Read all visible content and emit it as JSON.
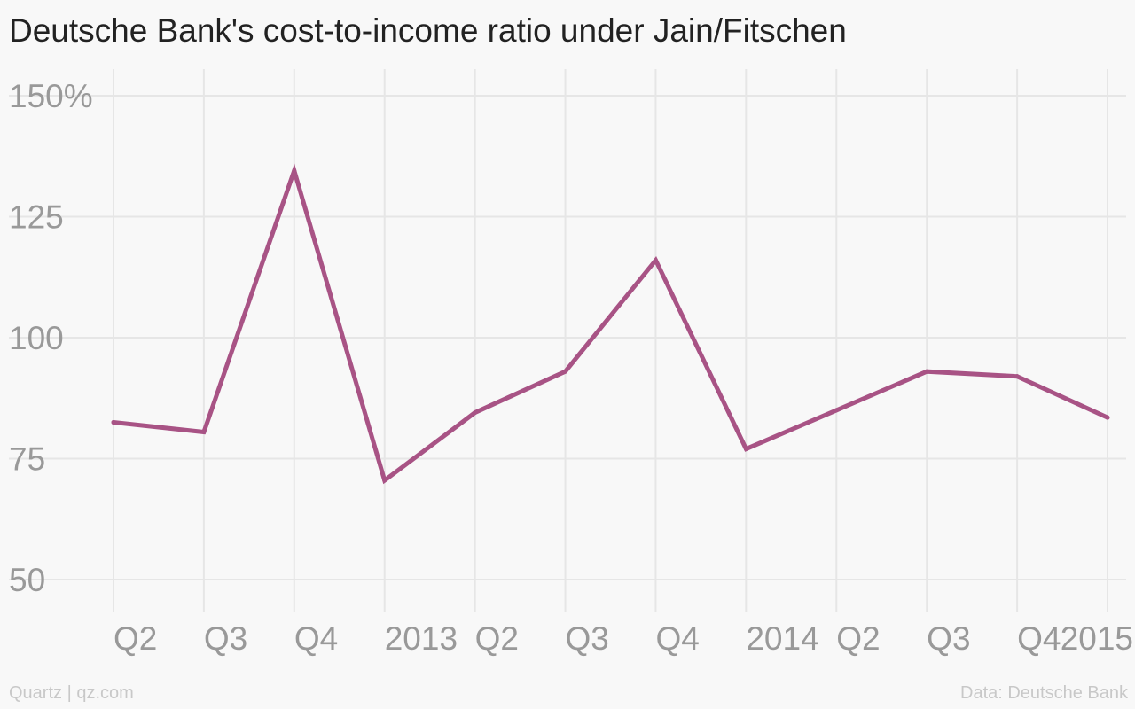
{
  "colors": {
    "line": "#a85385",
    "grid": "#e6e6e6",
    "tick_label": "#999999",
    "title": "#222222",
    "footer": "#c8c8c8",
    "background": "#f8f8f8"
  },
  "footer": {
    "source_left": "Quartz | qz.com",
    "source_right": "Data: Deutsche Bank"
  },
  "chart_data": {
    "type": "line",
    "title": "Deutsche Bank's cost-to-income ratio under Jain/Fitschen",
    "xlabel": "",
    "ylabel": "",
    "categories": [
      "Q2",
      "Q3",
      "Q4",
      "2013",
      "Q2",
      "Q3",
      "Q4",
      "2014",
      "Q2",
      "Q3",
      "Q4",
      "2015"
    ],
    "series": [
      {
        "values": [
          82.5,
          80.5,
          134.5,
          70.5,
          84.5,
          93,
          116,
          77,
          85,
          93,
          92,
          83.5
        ]
      }
    ],
    "ylim": [
      50,
      150
    ],
    "yticks": [
      50,
      75,
      100,
      125,
      150
    ],
    "ytick_labels": [
      "50",
      "75",
      "100",
      "125",
      "150%"
    ],
    "grid": true,
    "legend": "none"
  }
}
